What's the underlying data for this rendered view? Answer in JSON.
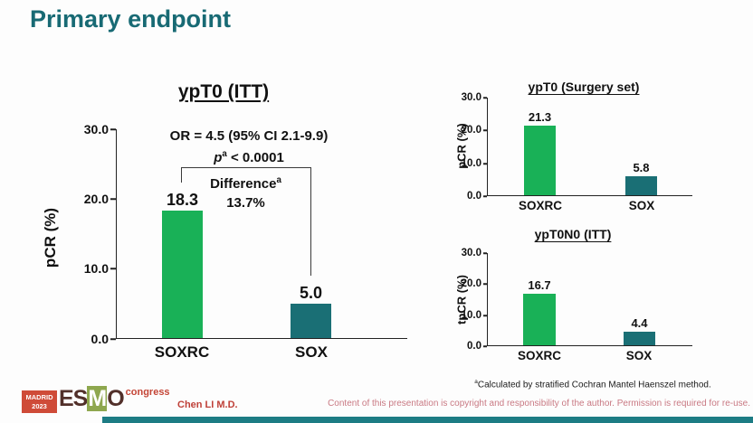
{
  "page": {
    "title": "Primary endpoint",
    "presenter": "Chen LI M.D.",
    "footnote_sup": "a",
    "footnote_text": "Calculated by stratified Cochran Mantel Haenszel method.",
    "copyright": "Content of this presentation is copyright and responsibility of the author. Permission is required for re-use."
  },
  "logo": {
    "city": "MADRID",
    "year": "2023",
    "brand_e": "ES",
    "brand_m": "M",
    "brand_o": "O",
    "congress": "congress"
  },
  "colors": {
    "title_teal": "#186a74",
    "soxrc_green": "#19b157",
    "sox_teal": "#1a6f75",
    "logo_red": "#cf4b38",
    "presenter_red": "#bf4038",
    "copyright_pink": "#c97983",
    "footer_strip_teal": "#1d7c84"
  },
  "chart_data": [
    {
      "id": "main",
      "type": "bar",
      "title": "ypT0 (ITT)",
      "ylabel": "pCR (%)",
      "ylim": [
        0,
        30
      ],
      "yticks": [
        "30.0",
        "20.0",
        "10.0",
        "0.0"
      ],
      "categories": [
        "SOXRC",
        "SOX"
      ],
      "values": [
        18.3,
        5.0
      ],
      "bar_labels": [
        "18.3",
        "5.0"
      ],
      "bar_colors": [
        "#19b157",
        "#1a6f75"
      ],
      "grid": false,
      "stats": {
        "or_text": "OR = 4.5 (95% CI 2.1-9.9)",
        "p_prefix": "p",
        "p_sup": "a",
        "p_rest": " < 0.0001",
        "diff_label": "Difference",
        "diff_sup": "a",
        "diff_value": "13.7%"
      }
    },
    {
      "id": "surgery",
      "type": "bar",
      "title": "ypT0 (Surgery set)",
      "ylabel": "pCR (%)",
      "ylim": [
        0,
        30
      ],
      "yticks": [
        "30.0",
        "20.0",
        "10.0",
        "0.0"
      ],
      "categories": [
        "SOXRC",
        "SOX"
      ],
      "values": [
        21.3,
        5.8
      ],
      "bar_labels": [
        "21.3",
        "5.8"
      ],
      "bar_colors": [
        "#19b157",
        "#1a6f75"
      ],
      "grid": false
    },
    {
      "id": "tono",
      "type": "bar",
      "title": "ypT0N0 (ITT)",
      "ylabel": "tpCR (%)",
      "ylim": [
        0,
        30
      ],
      "yticks": [
        "30.0",
        "20.0",
        "10.0",
        "0.0"
      ],
      "categories": [
        "SOXRC",
        "SOX"
      ],
      "values": [
        16.7,
        4.4
      ],
      "bar_labels": [
        "16.7",
        "4.4"
      ],
      "bar_colors": [
        "#19b157",
        "#1a6f75"
      ],
      "grid": false
    }
  ]
}
